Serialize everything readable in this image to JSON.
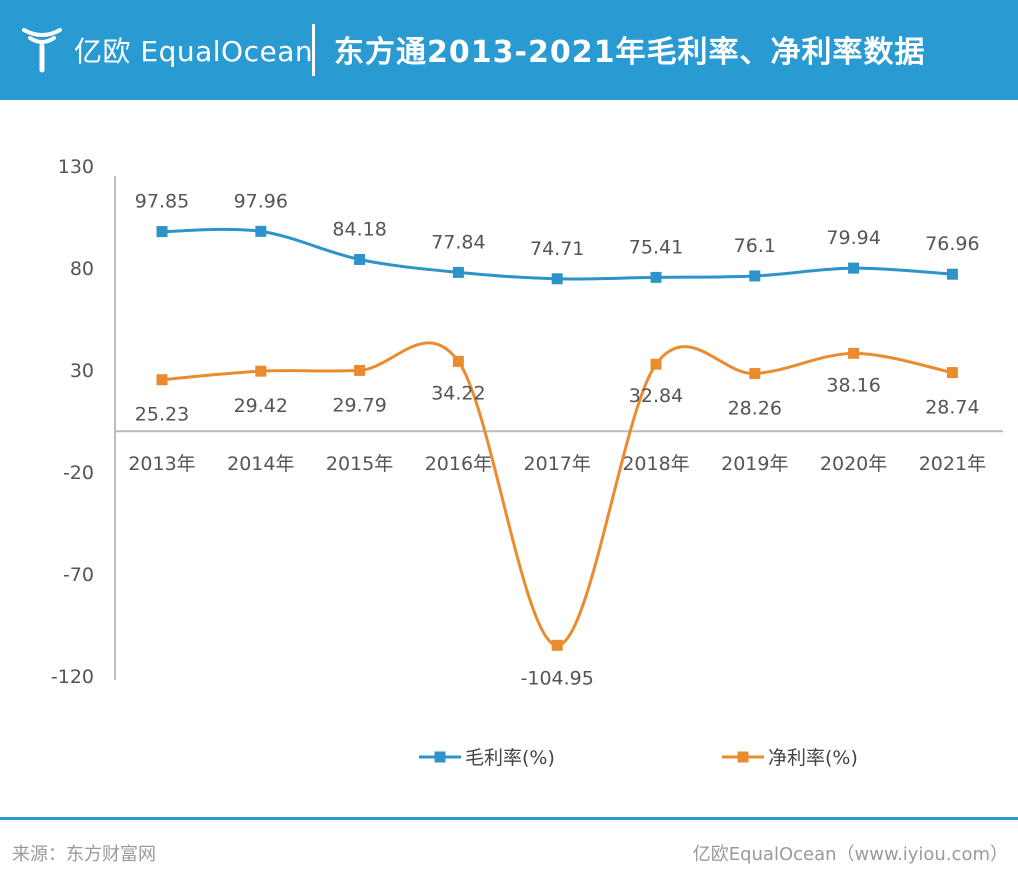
{
  "header": {
    "logo_text": "亿欧 EqualOcean",
    "title": "东方通2013-2021年毛利率、净利率数据"
  },
  "colors": {
    "header_bg": "#2a9bd2",
    "gross_margin": "#2e93c8",
    "net_margin": "#ea8c2e",
    "axis": "#bbbbbb"
  },
  "chart_data": {
    "type": "line",
    "categories": [
      "2013年",
      "2014年",
      "2015年",
      "2016年",
      "2017年",
      "2018年",
      "2019年",
      "2020年",
      "2021年"
    ],
    "series": [
      {
        "name": "毛利率(%)",
        "values": [
          97.85,
          97.96,
          84.18,
          77.84,
          74.71,
          75.41,
          76.1,
          79.94,
          76.96
        ],
        "labels": [
          "97.85",
          "97.96",
          "84.18",
          "77.84",
          "74.71",
          "75.41",
          "76.1",
          "79.94",
          "76.96"
        ]
      },
      {
        "name": "净利率(%)",
        "values": [
          25.23,
          29.42,
          29.79,
          34.22,
          -104.95,
          32.84,
          28.26,
          38.16,
          28.74
        ],
        "labels": [
          "25.23",
          "29.42",
          "29.79",
          "34.22",
          "-104.95",
          "32.84",
          "28.26",
          "38.16",
          "28.74"
        ]
      }
    ],
    "yticks": [
      "130",
      "80",
      "30",
      "-20",
      "-70",
      "-120"
    ],
    "ylim": [
      -120,
      130
    ],
    "smooth": true,
    "legend_position": "bottom",
    "grid": false
  },
  "footer": {
    "source": "来源：东方财富网",
    "credit": "亿欧EqualOcean（www.iyiou.com）"
  }
}
